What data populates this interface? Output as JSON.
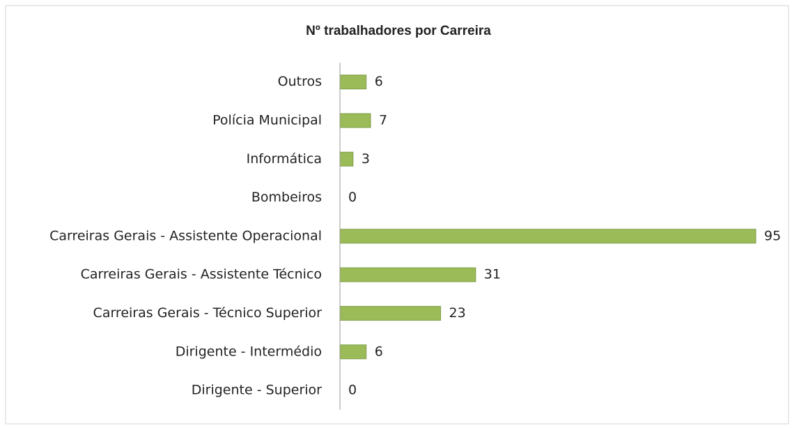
{
  "chart_data": {
    "type": "bar",
    "orientation": "horizontal",
    "title": "Nº trabalhadores por Carreira",
    "categories": [
      "Outros",
      "Polícia Municipal",
      "Informática",
      "Bombeiros",
      "Carreiras Gerais - Assistente Operacional",
      "Carreiras Gerais - Assistente Técnico",
      "Carreiras Gerais - Técnico Superior",
      "Dirigente - Intermédio",
      "Dirigente - Superior"
    ],
    "values": [
      6,
      7,
      3,
      0,
      95,
      31,
      23,
      6,
      0
    ],
    "color": "#9bbb59"
  }
}
